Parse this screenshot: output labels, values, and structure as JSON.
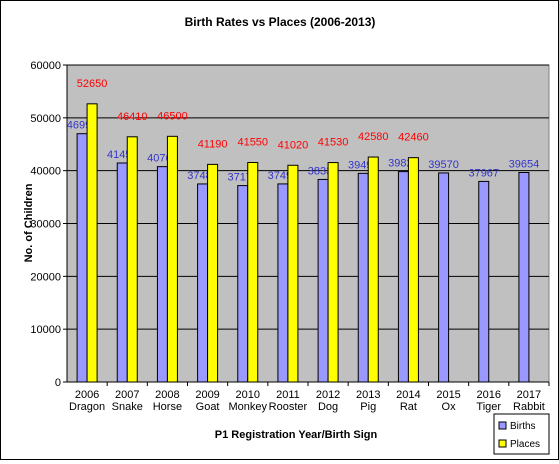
{
  "chart_data": {
    "type": "bar",
    "title": "Birth Rates vs Places (2006-2013)",
    "xlabel": "P1 Registration Year/Birth Sign",
    "ylabel": "No. of Children",
    "ylim": [
      0,
      60000
    ],
    "yticks": [
      0,
      10000,
      20000,
      30000,
      40000,
      50000,
      60000
    ],
    "categories": [
      [
        "2006",
        "Dragon"
      ],
      [
        "2007",
        "Snake"
      ],
      [
        "2008",
        "Horse"
      ],
      [
        "2009",
        "Goat"
      ],
      [
        "2010",
        "Monkey"
      ],
      [
        "2011",
        "Rooster"
      ],
      [
        "2012",
        "Dog"
      ],
      [
        "2013",
        "Pig"
      ],
      [
        "2014",
        "Rat"
      ],
      [
        "2015",
        "Ox"
      ],
      [
        "2016",
        "Tiger"
      ],
      [
        "2017",
        "Rabbit"
      ]
    ],
    "series": [
      {
        "name": "Births",
        "color": "#9999ff",
        "label_color": "#3333cc",
        "values": [
          46997,
          41451,
          40760,
          37485,
          37174,
          37492,
          38337,
          39490,
          39820,
          39570,
          37967,
          39654
        ]
      },
      {
        "name": "Places",
        "color": "#ffff00",
        "label_color": "#ff0000",
        "values": [
          52650,
          46410,
          46500,
          41190,
          41550,
          41020,
          41530,
          42580,
          42460,
          null,
          null,
          null
        ]
      }
    ],
    "grid": true,
    "plot_background": "#c0c0c0",
    "legend": "bottom-right"
  }
}
